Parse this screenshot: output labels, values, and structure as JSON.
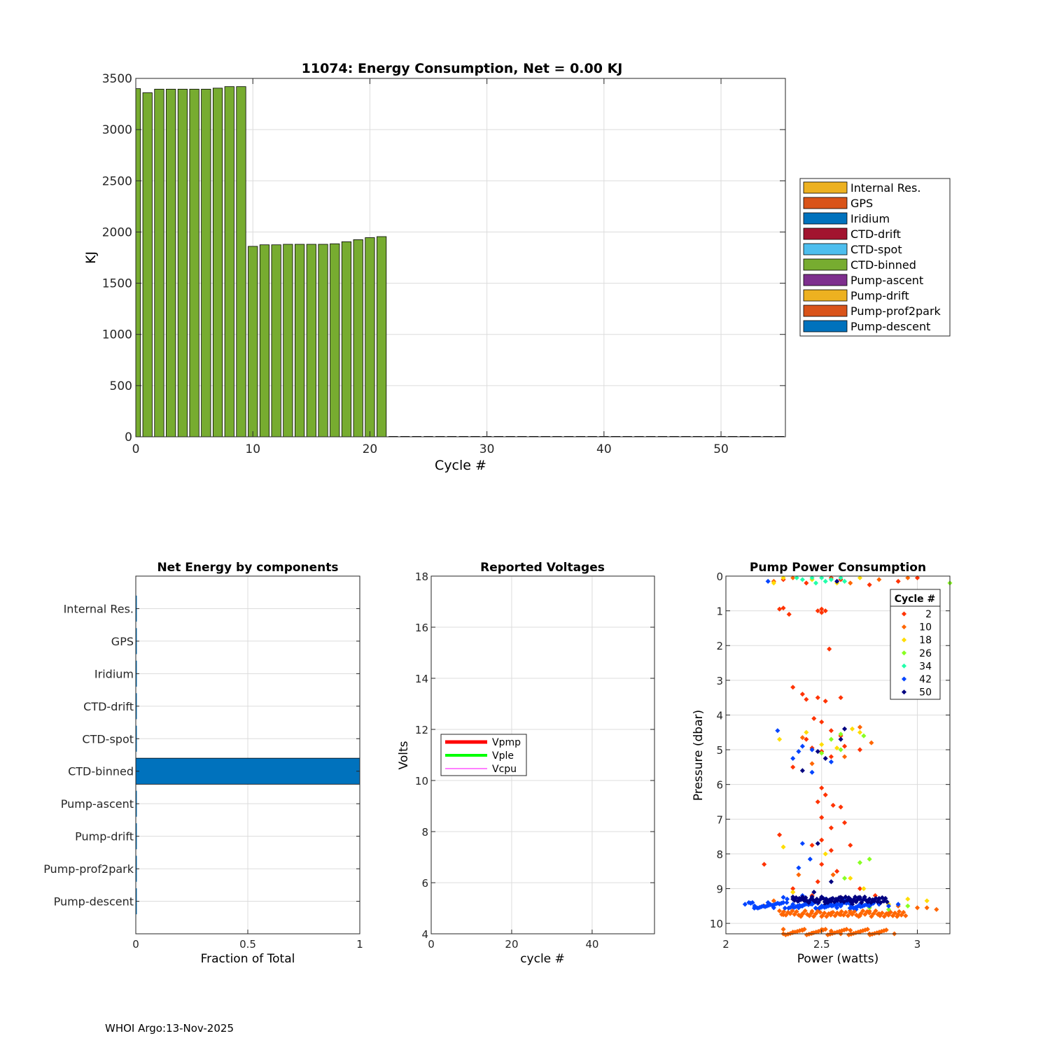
{
  "footer": "WHOI Argo:13-Nov-2025",
  "colors": {
    "axis": "#262626",
    "grid": "#dcdcdc",
    "bar_green": "#77AC30",
    "hbar_blue": "#0072BD"
  },
  "chart_data": [
    {
      "id": "energy",
      "type": "bar",
      "title": "11074: Energy Consumption,  Net =   0.00 KJ",
      "xlabel": "Cycle #",
      "ylabel": "KJ",
      "xlim": [
        0,
        55.5
      ],
      "ylim": [
        0,
        3500
      ],
      "xticks": [
        0,
        10,
        20,
        30,
        40,
        50
      ],
      "yticks": [
        0,
        500,
        1000,
        1500,
        2000,
        2500,
        3000,
        3500
      ],
      "grid": true,
      "stacked": true,
      "legend_position": "outside-right",
      "legend": [
        {
          "name": "Internal Res.",
          "color": "#EDB120"
        },
        {
          "name": "GPS",
          "color": "#D95319"
        },
        {
          "name": "Iridium",
          "color": "#0072BD"
        },
        {
          "name": "CTD-drift",
          "color": "#A2142F"
        },
        {
          "name": "CTD-spot",
          "color": "#4DBEEE"
        },
        {
          "name": "CTD-binned",
          "color": "#77AC30"
        },
        {
          "name": "Pump-ascent",
          "color": "#7E2F8E"
        },
        {
          "name": "Pump-drift",
          "color": "#EDB120"
        },
        {
          "name": "Pump-prof2park",
          "color": "#D95319"
        },
        {
          "name": "Pump-descent",
          "color": "#0072BD"
        }
      ],
      "cycles": [
        0,
        1,
        2,
        3,
        4,
        5,
        6,
        7,
        8,
        9,
        10,
        11,
        12,
        13,
        14,
        15,
        16,
        17,
        18,
        19,
        20,
        21,
        22,
        23,
        24,
        25,
        26,
        27,
        28,
        29,
        30,
        31,
        32,
        33,
        34,
        35,
        36,
        37,
        38,
        39,
        40,
        41,
        42,
        43,
        44,
        45,
        46,
        47,
        48,
        49,
        50,
        51,
        52,
        53,
        54,
        55
      ],
      "values": [
        3400,
        3360,
        3395,
        3395,
        3395,
        3395,
        3395,
        3405,
        3420,
        3420,
        1860,
        1875,
        1875,
        1880,
        1880,
        1880,
        1880,
        1885,
        1905,
        1925,
        1945,
        1955,
        0,
        0,
        0,
        0,
        0,
        0,
        0,
        0,
        0,
        0,
        0,
        0,
        0,
        0,
        0,
        0,
        0,
        0,
        0,
        0,
        0,
        0,
        0,
        0,
        0,
        0,
        0,
        0,
        0,
        0,
        0,
        0,
        0,
        0
      ]
    },
    {
      "id": "components",
      "type": "bar",
      "orientation": "horizontal",
      "title": "Net Energy by components",
      "xlabel": "Fraction of Total",
      "xlim": [
        0,
        1
      ],
      "xticks": [
        0,
        0.5,
        1
      ],
      "grid": true,
      "categories": [
        "Internal Res.",
        "GPS",
        "Iridium",
        "CTD-drift",
        "CTD-spot",
        "CTD-binned",
        "Pump-ascent",
        "Pump-drift",
        "Pump-prof2park",
        "Pump-descent"
      ],
      "values": [
        0.002,
        0.002,
        0.001,
        0.002,
        0.001,
        1.0,
        0.002,
        0.001,
        0.001,
        0.002
      ]
    },
    {
      "id": "voltages",
      "type": "line",
      "title": "Reported Voltages",
      "xlabel": "cycle #",
      "ylabel": "Volts",
      "xlim": [
        0,
        55.5
      ],
      "ylim": [
        4,
        18
      ],
      "xticks": [
        0,
        20,
        40
      ],
      "yticks": [
        4,
        6,
        8,
        10,
        12,
        14,
        16,
        18
      ],
      "grid": true,
      "legend_position": "middle-left",
      "series": [
        {
          "name": "Vpmp",
          "color": "#FF0000",
          "width": 5,
          "values": []
        },
        {
          "name": "Vple",
          "color": "#00FF00",
          "width": 4,
          "values": []
        },
        {
          "name": "Vcpu",
          "color": "#FF00FF",
          "width": 1,
          "values": []
        }
      ]
    },
    {
      "id": "pump",
      "type": "scatter",
      "title": "Pump Power Consumption",
      "xlabel": "Power (watts)",
      "ylabel": "Pressure (dbar)",
      "xlim": [
        2,
        3.17
      ],
      "ylim": [
        10.3,
        0
      ],
      "xticks": [
        2,
        2.5,
        3
      ],
      "xtick_labels": [
        "2",
        "2.5",
        "3"
      ],
      "yticks": [
        0,
        1,
        2,
        3,
        4,
        5,
        6,
        7,
        8,
        9,
        10
      ],
      "grid": true,
      "legend_title": "Cycle #",
      "legend_position": "top-right",
      "series": [
        {
          "name": "2",
          "color": "#FF3300",
          "points": [
            [
              2.28,
              0.95
            ],
            [
              2.3,
              0.92
            ],
            [
              2.33,
              1.1
            ],
            [
              2.48,
              1.0
            ],
            [
              2.5,
              0.95
            ],
            [
              2.5,
              1.05
            ],
            [
              2.52,
              1.0
            ],
            [
              2.54,
              2.1
            ],
            [
              2.35,
              3.2
            ],
            [
              2.4,
              3.4
            ],
            [
              2.42,
              3.55
            ],
            [
              2.48,
              3.5
            ],
            [
              2.52,
              3.6
            ],
            [
              2.6,
              3.5
            ],
            [
              2.46,
              4.1
            ],
            [
              2.5,
              4.2
            ],
            [
              2.55,
              4.45
            ],
            [
              2.6,
              4.6
            ],
            [
              2.42,
              4.7
            ],
            [
              2.45,
              4.95
            ],
            [
              2.5,
              5.05
            ],
            [
              2.55,
              5.2
            ],
            [
              2.62,
              4.9
            ],
            [
              2.7,
              5.0
            ],
            [
              2.35,
              5.5
            ],
            [
              2.5,
              6.1
            ],
            [
              2.52,
              6.3
            ],
            [
              2.48,
              6.5
            ],
            [
              2.56,
              6.6
            ],
            [
              2.6,
              6.65
            ],
            [
              2.5,
              6.95
            ],
            [
              2.55,
              7.25
            ],
            [
              2.62,
              7.1
            ],
            [
              2.28,
              7.45
            ],
            [
              2.5,
              7.6
            ],
            [
              2.45,
              7.75
            ],
            [
              2.55,
              7.9
            ],
            [
              2.65,
              7.75
            ],
            [
              2.2,
              8.3
            ],
            [
              2.5,
              8.3
            ],
            [
              2.58,
              8.5
            ],
            [
              2.48,
              8.8
            ],
            [
              2.35,
              9.0
            ],
            [
              2.7,
              9.0
            ],
            [
              2.45,
              9.2
            ],
            [
              2.6,
              9.25
            ],
            [
              2.78,
              9.2
            ],
            [
              2.3,
              0.1
            ],
            [
              2.42,
              0.2
            ],
            [
              2.6,
              0.1
            ],
            [
              2.75,
              0.25
            ],
            [
              2.9,
              0.15
            ],
            [
              3.0,
              0.05
            ],
            [
              2.55,
              0.05
            ]
          ]
        },
        {
          "name": "10",
          "color": "#FF6600",
          "points": [
            [
              2.3,
              9.75
            ],
            [
              2.4,
              9.72
            ],
            [
              2.5,
              9.8
            ],
            [
              2.6,
              9.75
            ],
            [
              2.7,
              9.78
            ],
            [
              2.8,
              9.72
            ],
            [
              2.9,
              9.75
            ],
            [
              3.0,
              9.55
            ],
            [
              3.05,
              9.55
            ],
            [
              2.35,
              10.25
            ],
            [
              2.45,
              10.28
            ],
            [
              2.55,
              10.22
            ],
            [
              2.6,
              10.3
            ],
            [
              2.7,
              10.25
            ],
            [
              2.8,
              10.28
            ],
            [
              2.88,
              10.3
            ],
            [
              2.5,
              10.18
            ],
            [
              2.4,
              10.2
            ],
            [
              2.3,
              10.3
            ],
            [
              2.65,
              10.2
            ],
            [
              2.75,
              10.3
            ],
            [
              2.45,
              9.65
            ],
            [
              2.55,
              9.7
            ],
            [
              2.65,
              9.7
            ],
            [
              2.75,
              9.65
            ],
            [
              2.85,
              9.7
            ],
            [
              2.2,
              9.5
            ],
            [
              2.25,
              0.15
            ],
            [
              2.35,
              0.05
            ],
            [
              2.65,
              0.2
            ],
            [
              2.8,
              0.1
            ],
            [
              2.95,
              0.05
            ],
            [
              2.4,
              4.65
            ],
            [
              2.7,
              4.35
            ],
            [
              2.76,
              4.8
            ],
            [
              2.62,
              5.2
            ],
            [
              2.45,
              5.4
            ],
            [
              2.38,
              8.6
            ],
            [
              2.56,
              8.6
            ],
            [
              3.1,
              9.6
            ],
            [
              2.9,
              9.5
            ],
            [
              2.25,
              9.35
            ],
            [
              2.35,
              9.1
            ]
          ]
        },
        {
          "name": "18",
          "color": "#FFDD00",
          "points": [
            [
              2.3,
              0.05
            ],
            [
              2.45,
              0.1
            ],
            [
              2.58,
              0.2
            ],
            [
              2.7,
              0.05
            ],
            [
              2.28,
              4.7
            ],
            [
              2.5,
              4.85
            ],
            [
              2.58,
              4.95
            ],
            [
              2.7,
              4.5
            ],
            [
              2.3,
              7.8
            ],
            [
              2.52,
              8.0
            ],
            [
              2.65,
              8.7
            ],
            [
              2.72,
              9.0
            ],
            [
              2.95,
              9.3
            ],
            [
              3.05,
              9.35
            ],
            [
              2.35,
              9.1
            ],
            [
              2.85,
              9.45
            ],
            [
              2.25,
              0.2
            ],
            [
              2.42,
              4.5
            ],
            [
              2.66,
              4.4
            ]
          ]
        },
        {
          "name": "26",
          "color": "#88FF22",
          "points": [
            [
              2.62,
              8.7
            ],
            [
              2.7,
              8.25
            ],
            [
              2.75,
              8.15
            ],
            [
              2.6,
              5.0
            ],
            [
              2.55,
              4.7
            ],
            [
              2.72,
              4.6
            ],
            [
              2.75,
              9.55
            ],
            [
              2.85,
              9.6
            ],
            [
              2.95,
              9.5
            ],
            [
              2.65,
              9.55
            ],
            [
              3.17,
              0.2
            ],
            [
              2.6,
              4.55
            ],
            [
              2.5,
              5.1
            ]
          ]
        },
        {
          "name": "34",
          "color": "#22FFAA",
          "points": [
            [
              2.4,
              0.1
            ],
            [
              2.45,
              0.05
            ],
            [
              2.5,
              0.05
            ],
            [
              2.55,
              0.1
            ],
            [
              2.6,
              0.05
            ],
            [
              2.52,
              0.15
            ],
            [
              2.47,
              0.2
            ],
            [
              2.37,
              0.05
            ],
            [
              2.62,
              0.15
            ]
          ]
        },
        {
          "name": "42",
          "color": "#0044FF",
          "points": [
            [
              2.1,
              9.45
            ],
            [
              2.15,
              9.5
            ],
            [
              2.22,
              9.4
            ],
            [
              2.3,
              9.4
            ],
            [
              2.35,
              9.45
            ],
            [
              2.4,
              9.5
            ],
            [
              2.45,
              9.45
            ],
            [
              2.5,
              9.5
            ],
            [
              2.55,
              9.45
            ],
            [
              2.6,
              9.5
            ],
            [
              2.65,
              9.45
            ],
            [
              2.7,
              9.45
            ],
            [
              2.75,
              9.5
            ],
            [
              2.8,
              9.45
            ],
            [
              2.85,
              9.5
            ],
            [
              2.9,
              9.45
            ],
            [
              2.25,
              9.55
            ],
            [
              2.38,
              9.55
            ],
            [
              2.48,
              9.6
            ],
            [
              2.58,
              9.55
            ],
            [
              2.68,
              9.6
            ],
            [
              2.32,
              9.3
            ],
            [
              2.42,
              9.35
            ],
            [
              2.52,
              9.3
            ],
            [
              2.62,
              9.35
            ],
            [
              2.72,
              9.3
            ],
            [
              2.27,
              4.45
            ],
            [
              2.4,
              4.9
            ],
            [
              2.35,
              5.25
            ],
            [
              2.38,
              5.05
            ],
            [
              2.45,
              5.0
            ],
            [
              2.55,
              5.35
            ],
            [
              2.4,
              7.7
            ],
            [
              2.44,
              8.15
            ],
            [
              2.38,
              8.4
            ],
            [
              2.4,
              9.2
            ],
            [
              2.3,
              9.25
            ],
            [
              2.22,
              0.15
            ],
            [
              2.45,
              5.65
            ]
          ]
        },
        {
          "name": "50",
          "color": "#000080",
          "points": [
            [
              2.35,
              9.3
            ],
            [
              2.4,
              9.25
            ],
            [
              2.45,
              9.3
            ],
            [
              2.5,
              9.25
            ],
            [
              2.55,
              9.3
            ],
            [
              2.6,
              9.25
            ],
            [
              2.65,
              9.3
            ],
            [
              2.7,
              9.25
            ],
            [
              2.75,
              9.3
            ],
            [
              2.8,
              9.28
            ],
            [
              2.42,
              9.4
            ],
            [
              2.48,
              9.42
            ],
            [
              2.53,
              9.38
            ],
            [
              2.58,
              9.42
            ],
            [
              2.63,
              9.4
            ],
            [
              2.68,
              9.38
            ],
            [
              2.38,
              9.35
            ],
            [
              2.52,
              9.45
            ],
            [
              2.66,
              9.45
            ],
            [
              2.6,
              4.7
            ],
            [
              2.62,
              4.4
            ],
            [
              2.48,
              5.05
            ],
            [
              2.52,
              5.25
            ],
            [
              2.48,
              7.7
            ],
            [
              2.55,
              8.8
            ],
            [
              2.46,
              9.1
            ],
            [
              2.58,
              0.15
            ],
            [
              2.4,
              5.6
            ]
          ]
        }
      ]
    }
  ]
}
